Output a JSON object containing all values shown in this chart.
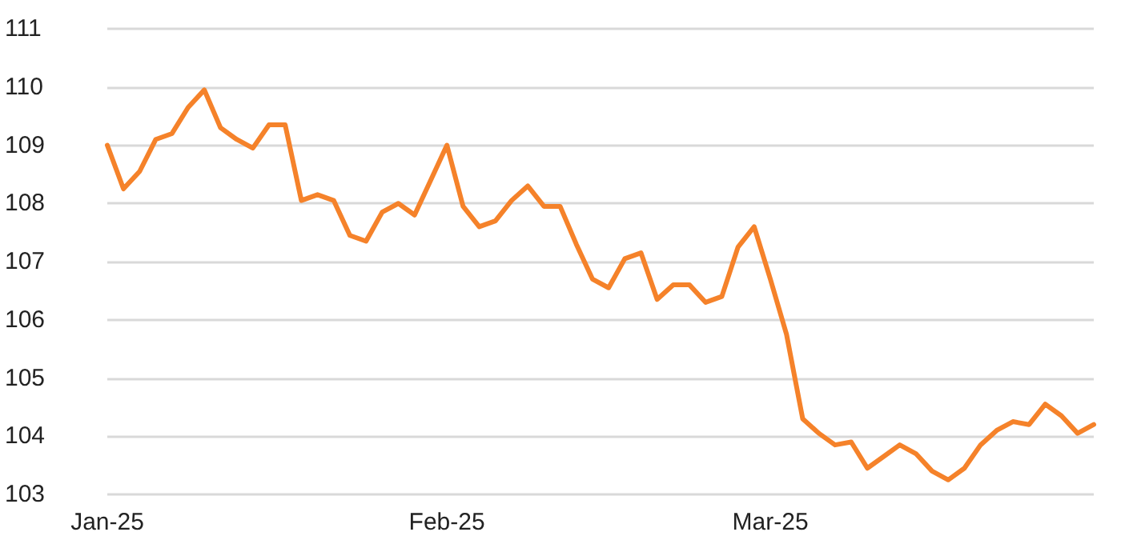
{
  "chart_data": {
    "type": "line",
    "categories": [
      "Jan-25",
      null,
      null,
      null,
      null,
      null,
      null,
      null,
      null,
      null,
      null,
      null,
      null,
      null,
      null,
      null,
      null,
      null,
      null,
      null,
      null,
      "Feb-25",
      null,
      null,
      null,
      null,
      null,
      null,
      null,
      null,
      null,
      null,
      null,
      null,
      null,
      null,
      null,
      null,
      null,
      null,
      null,
      "Mar-25",
      null,
      null,
      null,
      null,
      null,
      null,
      null,
      null,
      null,
      null,
      null,
      null,
      null,
      null,
      null,
      null,
      null,
      null,
      null,
      null
    ],
    "series": [
      {
        "color": "#f5822a",
        "values": [
          109.0,
          108.25,
          108.55,
          109.1,
          109.2,
          109.65,
          109.95,
          109.3,
          109.1,
          108.95,
          109.35,
          109.35,
          108.05,
          108.15,
          108.05,
          107.45,
          107.35,
          107.85,
          108.0,
          107.8,
          108.4,
          109.0,
          107.95,
          107.6,
          107.7,
          108.05,
          108.3,
          107.95,
          107.95,
          107.3,
          106.7,
          106.55,
          107.05,
          107.15,
          106.35,
          106.6,
          106.6,
          106.3,
          106.4,
          107.25,
          107.6,
          106.7,
          105.75,
          104.3,
          104.05,
          103.85,
          103.9,
          103.45,
          103.65,
          103.85,
          103.7,
          103.4,
          103.25,
          103.45,
          103.85,
          104.1,
          104.25,
          104.2,
          104.55,
          104.35,
          104.05,
          104.2
        ]
      }
    ],
    "ylim": [
      103,
      111
    ],
    "yticks": [
      103,
      104,
      105,
      106,
      107,
      108,
      109,
      110,
      111
    ],
    "grid": "y",
    "marker": "none",
    "line_style": "solid"
  }
}
